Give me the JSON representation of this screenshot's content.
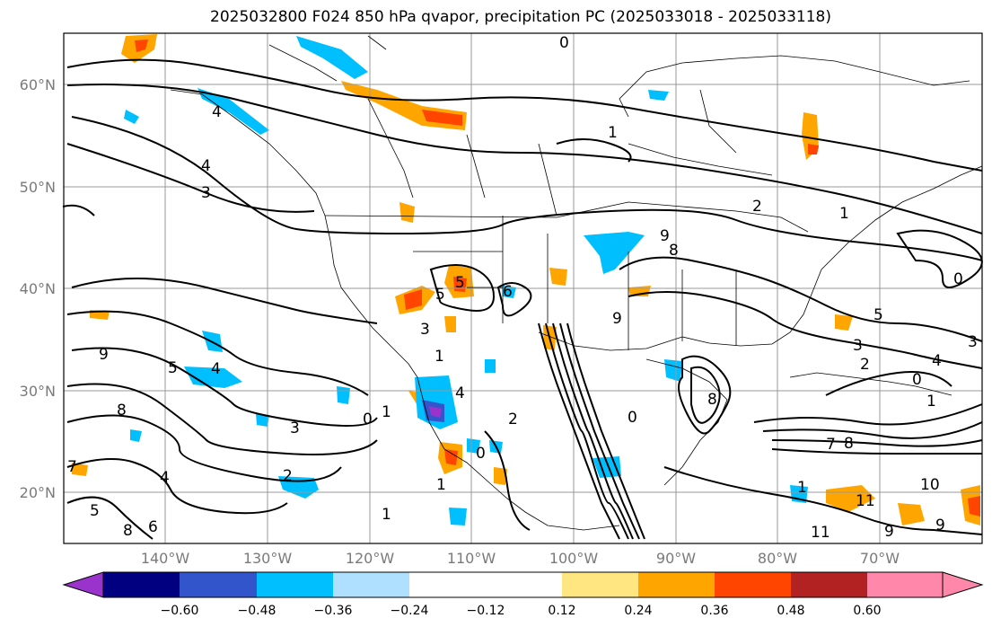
{
  "title": "2025032800 F024 850 hPa qvapor, precipitation PC (2025033018 - 2025033118)",
  "lat_labels": [
    "60°N",
    "50°N",
    "40°N",
    "30°N",
    "20°N"
  ],
  "lon_labels": [
    "140°W",
    "130°W",
    "120°W",
    "110°W",
    "100°W",
    "90°W",
    "80°W",
    "70°W"
  ],
  "colorbar": {
    "ticks": [
      "−0.60",
      "−0.48",
      "−0.36",
      "−0.24",
      "−0.12",
      "0.12",
      "0.24",
      "0.36",
      "0.48",
      "0.60"
    ],
    "colors": [
      "#9933cc",
      "#000080",
      "#3355cc",
      "#00bfff",
      "#b0e0ff",
      "#ffffff",
      "#ffe680",
      "#ffa500",
      "#ff4500",
      "#b22222",
      "#ff88aa"
    ]
  },
  "contour_labels": [
    "0",
    "4",
    "3",
    "4",
    "2",
    "1",
    "1",
    "0",
    "9",
    "8",
    "5",
    "6",
    "5",
    "9",
    "4",
    "5",
    "3",
    "0",
    "1",
    "4",
    "2",
    "2",
    "1",
    "0",
    "3",
    "9",
    "4",
    "8",
    "5",
    "3",
    "2",
    "4",
    "0",
    "1",
    "7",
    "8",
    "1",
    "0",
    "11",
    "9",
    "11",
    "10",
    "8",
    "9",
    "7",
    "8",
    "6",
    "5",
    "3",
    "1",
    "1"
  ],
  "colors": {
    "contour": "#000000",
    "grid": "#999999",
    "border": "#000000"
  }
}
